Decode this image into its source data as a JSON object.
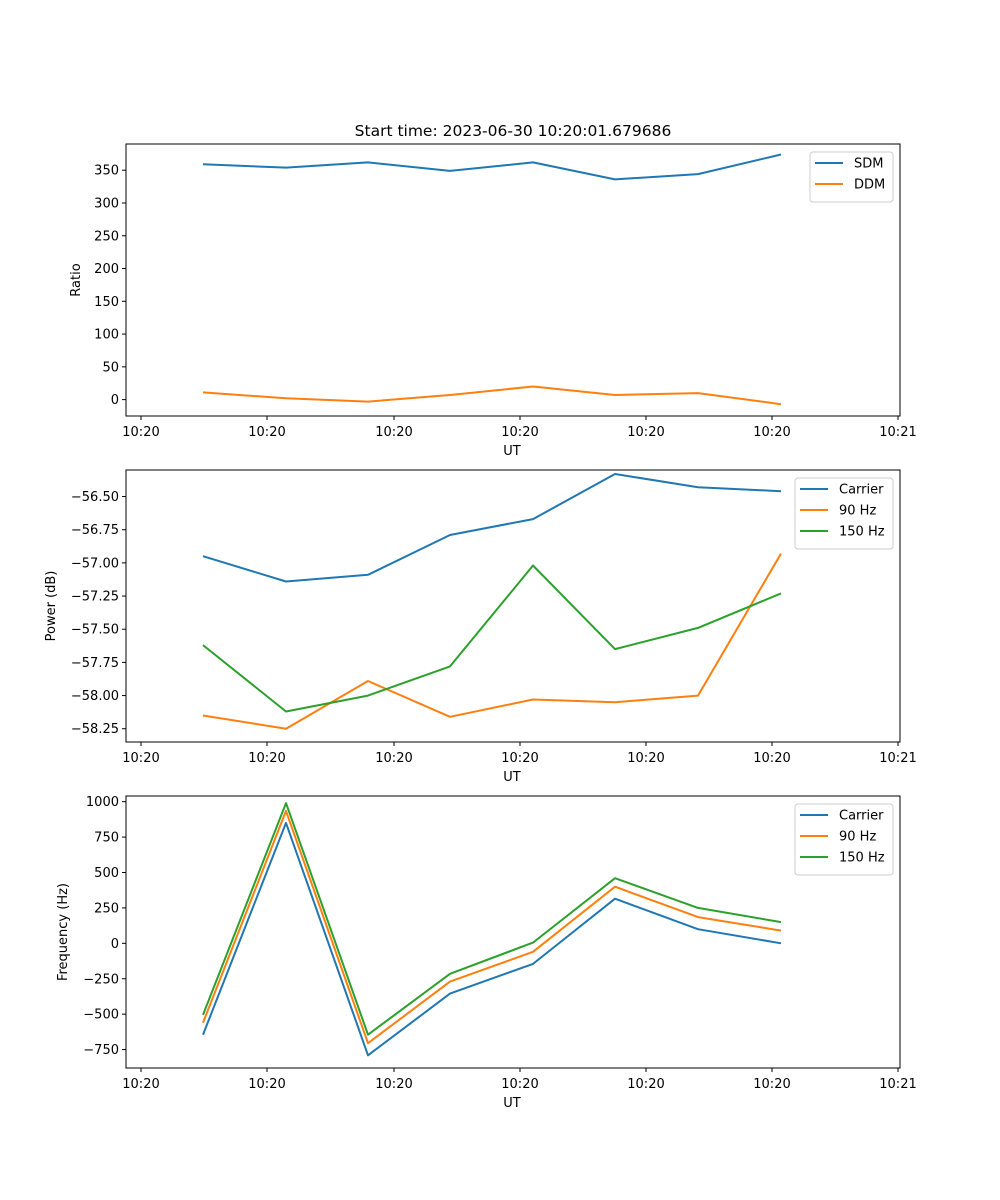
{
  "figure": {
    "title": "Start time: 2023-06-30 10:20:01.679686"
  },
  "chart_data": [
    {
      "type": "line",
      "title": "Start time: 2023-06-30 10:20:01.679686",
      "xlabel": "UT",
      "ylabel": "Ratio",
      "x_tick_labels": [
        "10:20",
        "10:20",
        "10:20",
        "10:20",
        "10:20",
        "10:20",
        "10:20",
        "10:21"
      ],
      "y_ticks": [
        0,
        50,
        100,
        150,
        200,
        250,
        300,
        350
      ],
      "ylim": [
        -25,
        390
      ],
      "legend_position": "top-right",
      "grid": false,
      "series": [
        {
          "name": "SDM",
          "color": "#1f77b4",
          "values": [
            359,
            354,
            362,
            349,
            362,
            336,
            344,
            374
          ]
        },
        {
          "name": "DDM",
          "color": "#ff7f0e",
          "values": [
            11,
            2,
            -3,
            7,
            20,
            7,
            10,
            -7
          ]
        }
      ]
    },
    {
      "type": "line",
      "title": "",
      "xlabel": "UT",
      "ylabel": "Power (dB)",
      "x_tick_labels": [
        "10:20",
        "10:20",
        "10:20",
        "10:20",
        "10:20",
        "10:20",
        "10:20",
        "10:21"
      ],
      "y_ticks": [
        -58.25,
        -58.0,
        -57.75,
        -57.5,
        -57.25,
        -57.0,
        -56.75,
        -56.5
      ],
      "y_tick_labels": [
        "−58.25",
        "−58.00",
        "−57.75",
        "−57.50",
        "−57.25",
        "−57.00",
        "−56.75",
        "−56.50"
      ],
      "ylim": [
        -58.35,
        -56.3
      ],
      "legend_position": "top-right",
      "grid": false,
      "series": [
        {
          "name": "Carrier",
          "color": "#1f77b4",
          "values": [
            -56.95,
            -57.14,
            -57.09,
            -56.79,
            -56.67,
            -56.33,
            -56.43,
            -56.46
          ]
        },
        {
          "name": "90 Hz",
          "color": "#ff7f0e",
          "values": [
            -58.15,
            -58.25,
            -57.89,
            -58.16,
            -58.03,
            -58.05,
            -58.0,
            -56.93
          ]
        },
        {
          "name": "150 Hz",
          "color": "#2ca02c",
          "values": [
            -57.62,
            -58.12,
            -58.0,
            -57.78,
            -57.02,
            -57.65,
            -57.49,
            -57.23
          ]
        }
      ]
    },
    {
      "type": "line",
      "title": "",
      "xlabel": "UT",
      "ylabel": "Frequency (Hz)",
      "x_tick_labels": [
        "10:20",
        "10:20",
        "10:20",
        "10:20",
        "10:20",
        "10:20",
        "10:20",
        "10:21"
      ],
      "y_ticks": [
        -750,
        -500,
        -250,
        0,
        250,
        500,
        750,
        1000
      ],
      "y_tick_labels": [
        "−750",
        "−500",
        "−250",
        "0",
        "250",
        "500",
        "750",
        "1000"
      ],
      "ylim": [
        -880,
        1040
      ],
      "legend_position": "top-right",
      "grid": false,
      "series": [
        {
          "name": "Carrier",
          "color": "#1f77b4",
          "values": [
            -645,
            850,
            -790,
            -355,
            -145,
            315,
            100,
            0
          ]
        },
        {
          "name": "90 Hz",
          "color": "#ff7f0e",
          "values": [
            -560,
            935,
            -705,
            -270,
            -60,
            400,
            185,
            90
          ]
        },
        {
          "name": "150 Hz",
          "color": "#2ca02c",
          "values": [
            -505,
            990,
            -645,
            -215,
            5,
            460,
            250,
            150
          ]
        }
      ]
    }
  ]
}
